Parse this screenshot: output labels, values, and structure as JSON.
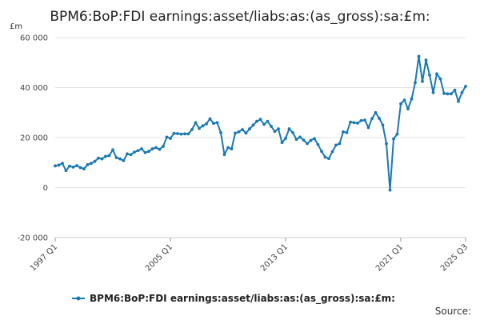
{
  "chart_data": {
    "type": "line",
    "title": "BPM6:BoP:FDI earnings:asset/liabs:as:(as_gross):sa:£m:",
    "unit_label": "£m",
    "source_label": "Source:",
    "xlabel": "",
    "ylabel": "",
    "ylim": [
      -20000,
      60000
    ],
    "y_ticks": [
      -20000,
      0,
      20000,
      40000,
      60000
    ],
    "y_tick_labels": [
      "-20 000",
      "0",
      "20 000",
      "40 000",
      "60 000"
    ],
    "x_tick_labels": [
      "1997 Q1",
      "2005 Q1",
      "2013 Q1",
      "2021 Q1",
      "2025 Q3"
    ],
    "x_tick_indices": [
      0,
      32,
      64,
      96,
      114
    ],
    "grid": true,
    "legend_position": "bottom",
    "series": [
      {
        "name": "BPM6:BoP:FDI earnings:asset/liabs:as:(as_gross):sa:£m:",
        "color": "#1a79b4",
        "values": [
          8700,
          9000,
          9700,
          6800,
          8600,
          8200,
          8800,
          8000,
          7500,
          9200,
          9700,
          10500,
          11800,
          11500,
          12500,
          12800,
          15100,
          12000,
          11500,
          10800,
          13500,
          13200,
          14200,
          14800,
          15500,
          14000,
          14500,
          15500,
          16000,
          15300,
          16500,
          20200,
          19700,
          21700,
          21600,
          21400,
          21500,
          21500,
          23200,
          26000,
          23700,
          24700,
          25500,
          27500,
          25700,
          26000,
          22000,
          13200,
          16000,
          15500,
          21800,
          22300,
          23200,
          21800,
          23500,
          25000,
          26500,
          27300,
          25300,
          26500,
          24500,
          22500,
          23500,
          18000,
          19700,
          23500,
          22000,
          19300,
          20200,
          19000,
          17600,
          18900,
          19600,
          17200,
          14500,
          12200,
          11600,
          14400,
          17000,
          17600,
          22300,
          22000,
          26200,
          26000,
          25800,
          26800,
          27000,
          24000,
          27600,
          30000,
          27700,
          25000,
          17600,
          -1000,
          19500,
          21400,
          33500,
          35000,
          31500,
          35500,
          42000,
          52500,
          42500,
          51000,
          45000,
          38000,
          45500,
          43500,
          37700,
          37500,
          37500,
          39000,
          34500,
          38000,
          40500
        ]
      }
    ]
  }
}
